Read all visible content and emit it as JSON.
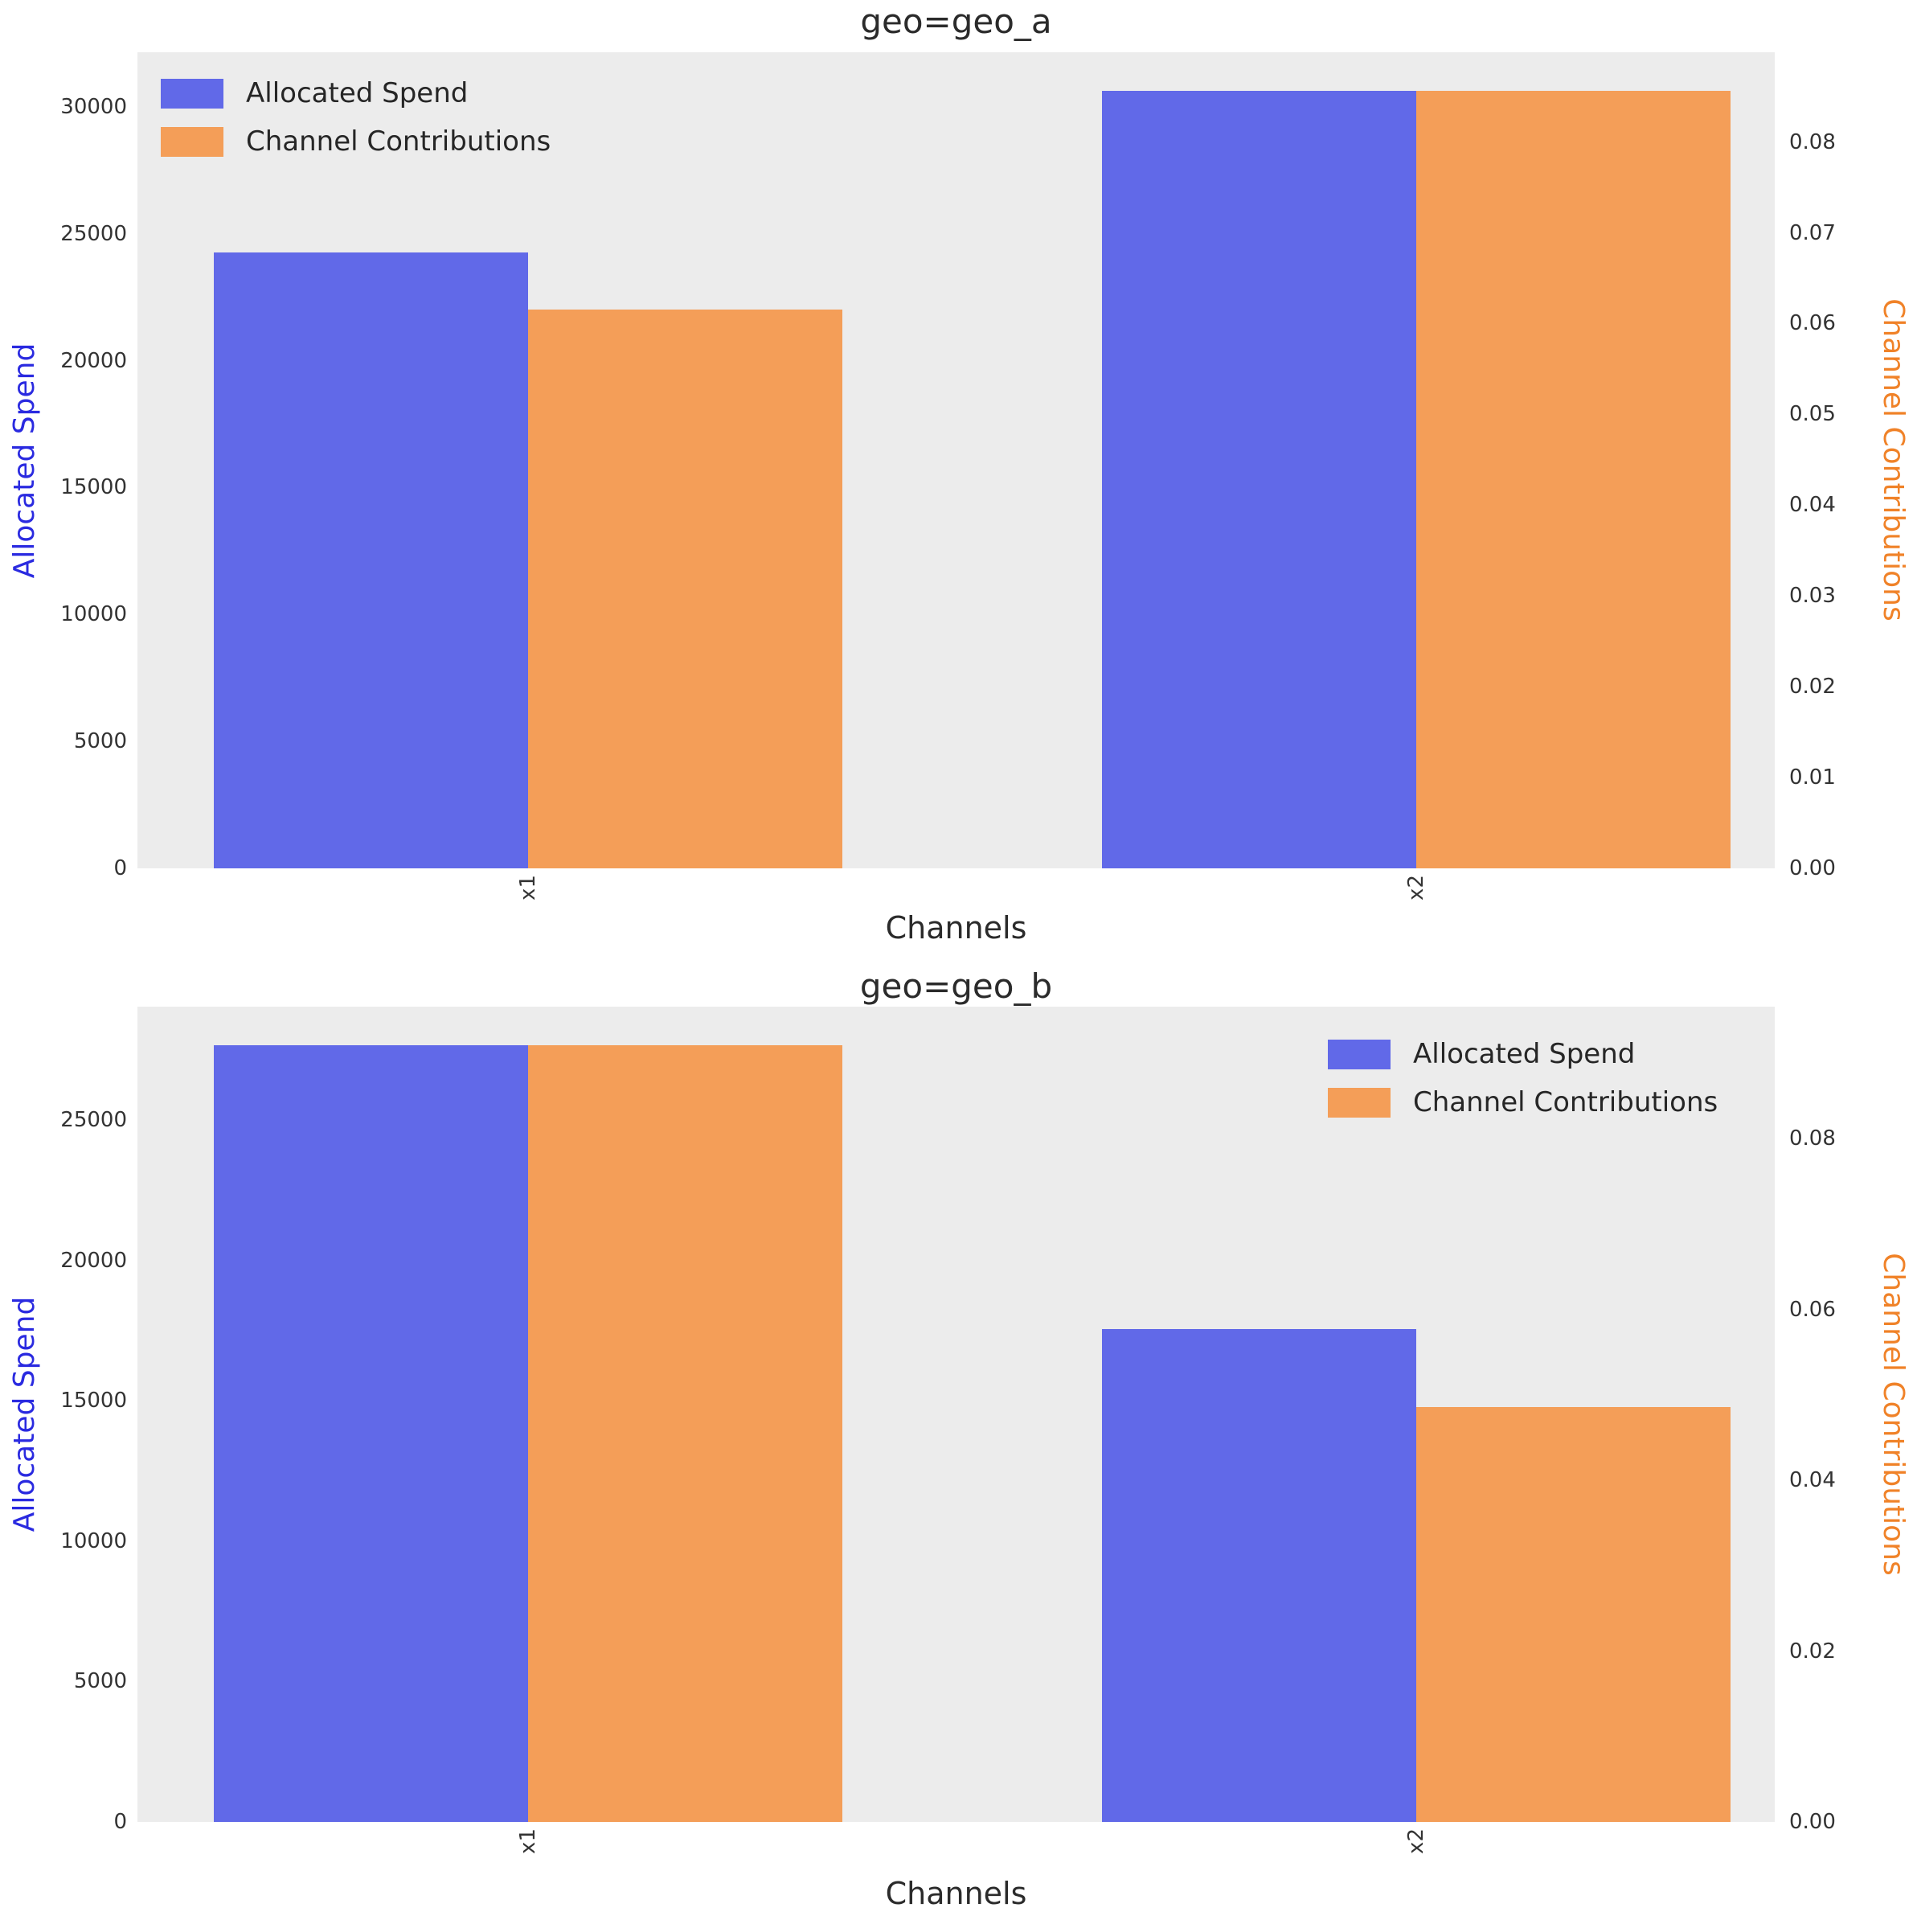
{
  "figure_background": "#ffffff",
  "plot_background": "#ececec",
  "chart_data": [
    {
      "type": "bar",
      "title": "geo=geo_a",
      "xlabel": "Channels",
      "ylabel_left": "Allocated Spend",
      "ylabel_right": "Channel Contributions",
      "ylabel_left_color": "#2a2ae0",
      "ylabel_right_color": "#f08228",
      "categories": [
        "x1",
        "x2"
      ],
      "series": [
        {
          "name": "Allocated Spend",
          "axis": "left",
          "color": "#6169e8",
          "values": [
            24270,
            30620
          ]
        },
        {
          "name": "Channel Contributions",
          "axis": "right",
          "color": "#f49e58",
          "values": [
            0.0615,
            0.0856
          ]
        }
      ],
      "left_ticks": [
        0,
        5000,
        10000,
        15000,
        20000,
        25000,
        30000
      ],
      "left_tick_labels": [
        "0",
        "5000",
        "10000",
        "15000",
        "20000",
        "25000",
        "30000"
      ],
      "right_ticks": [
        0,
        0.01,
        0.02,
        0.03,
        0.04,
        0.05,
        0.06,
        0.07,
        0.08
      ],
      "right_tick_labels": [
        "0.00",
        "0.01",
        "0.02",
        "0.03",
        "0.04",
        "0.05",
        "0.06",
        "0.07",
        "0.08"
      ],
      "ylim_left": [
        0,
        32151
      ],
      "ylim_right": [
        0,
        0.08988
      ],
      "legend_position": "top-left",
      "grid": false
    },
    {
      "type": "bar",
      "title": "geo=geo_b",
      "xlabel": "Channels",
      "ylabel_left": "Allocated Spend",
      "ylabel_right": "Channel Contributions",
      "ylabel_left_color": "#2a2ae0",
      "ylabel_right_color": "#f08228",
      "categories": [
        "x1",
        "x2"
      ],
      "series": [
        {
          "name": "Allocated Spend",
          "axis": "left",
          "color": "#6169e8",
          "values": [
            27670,
            17570
          ]
        },
        {
          "name": "Channel Contributions",
          "axis": "right",
          "color": "#f49e58",
          "values": [
            0.0909,
            0.0486
          ]
        }
      ],
      "left_ticks": [
        0,
        5000,
        10000,
        15000,
        20000,
        25000
      ],
      "left_tick_labels": [
        "0",
        "5000",
        "10000",
        "15000",
        "20000",
        "25000"
      ],
      "right_ticks": [
        0,
        0.02,
        0.04,
        0.06,
        0.08
      ],
      "right_tick_labels": [
        "0.00",
        "0.02",
        "0.04",
        "0.06",
        "0.08"
      ],
      "ylim_left": [
        0,
        29053
      ],
      "ylim_right": [
        0,
        0.09545
      ],
      "legend_position": "top-right",
      "grid": false
    }
  ]
}
